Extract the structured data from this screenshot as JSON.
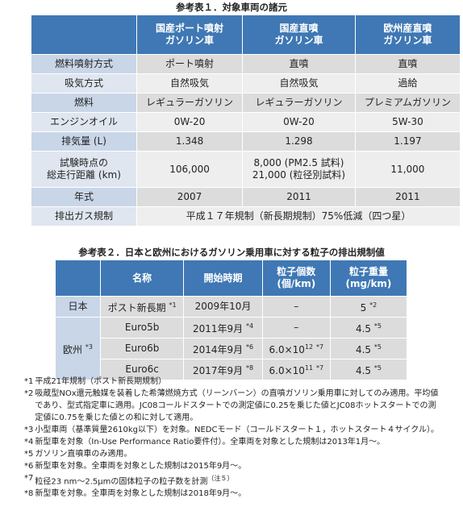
{
  "table1": {
    "title": "参考表１．対象車両の諸元",
    "header": [
      [
        "国産ポート噴射",
        "ガソリン車"
      ],
      [
        "国産直噴",
        "ガソリン車"
      ],
      [
        "欧州産直噴",
        "ガソリン車"
      ]
    ],
    "rows": [
      {
        "label": "燃料噴射方式",
        "cells": [
          "ポート噴射",
          "直噴",
          "直噴"
        ]
      },
      {
        "label": "吸気方式",
        "cells": [
          "自然吸気",
          "自然吸気",
          "過給"
        ]
      },
      {
        "label": "燃料",
        "cells": [
          "レギュラーガソリン",
          "レギュラーガソリン",
          "プレミアムガソリン"
        ]
      },
      {
        "label": "エンジンオイル",
        "cells": [
          "0W-20",
          "0W-20",
          "5W-30"
        ]
      },
      {
        "label": "排気量 (L)",
        "cells": [
          "1.348",
          "1.298",
          "1.197"
        ]
      },
      {
        "label": [
          "試験時点の",
          "総走行距離 (km)"
        ],
        "cells": [
          "106,000",
          [
            "8,000 (PM2.5 試料)",
            "21,000 (粒径別試料)"
          ],
          "11,000"
        ]
      },
      {
        "label": "年式",
        "cells": [
          "2007",
          "2011",
          "2011"
        ]
      },
      {
        "label": "排出ガス規制",
        "merged": "平成１７年規制（新長期規制）75%低減（四つ星）"
      }
    ]
  },
  "table2": {
    "title": "参考表２．日本と欧州におけるガソリン乗用車に対する粒子の排出規制値",
    "header": [
      [
        "名称"
      ],
      [
        "開始時期"
      ],
      [
        "粒子個数",
        "(個/km)"
      ],
      [
        "粒子重量",
        "(mg/km)"
      ]
    ],
    "groups": [
      {
        "region": {
          "text": "日本"
        },
        "rows": [
          {
            "name": {
              "text": "ポスト新長期",
              "note": "*1"
            },
            "start": {
              "text": "2009年10月"
            },
            "count": {
              "text": "–"
            },
            "mass": {
              "text": "5",
              "note": "*2"
            }
          }
        ]
      },
      {
        "region": {
          "text": "欧州",
          "note": "*3"
        },
        "rows": [
          {
            "name": {
              "text": "Euro5b"
            },
            "start": {
              "text": "2011年9月",
              "note": "*4"
            },
            "count": {
              "text": "–"
            },
            "mass": {
              "text": "4.5",
              "note": "*5"
            }
          },
          {
            "name": {
              "text": "Euro6b"
            },
            "start": {
              "text": "2014年9月",
              "note": "*6"
            },
            "count": {
              "text": "6.0×10",
              "exp": "12",
              "note": "*7"
            },
            "mass": {
              "text": "4.5",
              "note": "*5"
            }
          },
          {
            "name": {
              "text": "Euro6c"
            },
            "start": {
              "text": "2017年9月",
              "note": "*8"
            },
            "count": {
              "text": "6.0×10",
              "exp": "11",
              "note": "*7"
            },
            "mass": {
              "text": "4.5",
              "note": "*5"
            }
          }
        ]
      }
    ]
  },
  "notes": [
    {
      "mark": "*1",
      "text": "平成21年規制（ポスト新長期規制）"
    },
    {
      "mark": "*2",
      "text": "吸蔵型NOx還元触媒を装着した希薄燃焼方式（リーンバーン）の直噴ガソリン乗用車に対してのみ適用。平均値であり、型式指定車に適用。JC08コールドスタートでの測定値に0.25を乗じた値とJC08ホットスタートでの測定値に0.75を乗じた値との和に対して適用。"
    },
    {
      "mark": "*3",
      "text": "小型車両（基準質量2610kg以下）を対象。NEDCモード（コールドスタート１，ホットスタート４サイクル）。"
    },
    {
      "mark": "*4",
      "text": "新型車を対象（In-Use Performance Ratio要件付）。全車両を対象とした規制は2013年1月～。"
    },
    {
      "mark": "*5",
      "text": "ガソリン直噴車のみ適用。"
    },
    {
      "mark": "*6",
      "text": "新型車を対象。全車両を対象とした規制は2015年9月～。"
    },
    {
      "mark": "*7",
      "text": "粒径23 nm～2.5μmの固体粒子の粒子数を計測",
      "ref": "（注５）"
    },
    {
      "mark": "*8",
      "text": "新型車を対象。全車両を対象とした規制は2018年9月～。"
    }
  ]
}
